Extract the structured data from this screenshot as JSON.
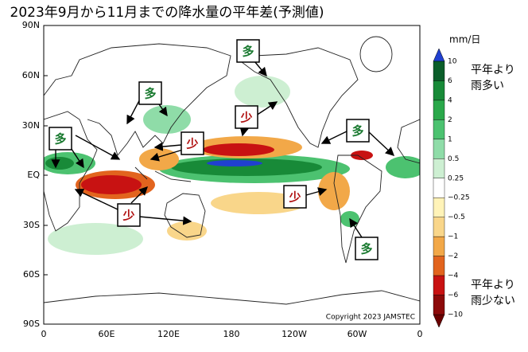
{
  "header": {
    "title": "2023年9月から11月までの降水量の平年差(予測値)"
  },
  "map": {
    "lat_labels": [
      "90N",
      "60N",
      "30N",
      "EQ",
      "30S",
      "60S",
      "90S"
    ],
    "lon_labels": [
      "0",
      "60E",
      "120E",
      "180",
      "120W",
      "60W",
      "0"
    ],
    "copyright": "Copyright 2023 JAMSTEC",
    "callouts": [
      {
        "label": "多",
        "kind": "wet"
      },
      {
        "label": "多",
        "kind": "wet"
      },
      {
        "label": "多",
        "kind": "wet"
      },
      {
        "label": "多",
        "kind": "wet"
      },
      {
        "label": "多",
        "kind": "wet"
      },
      {
        "label": "少",
        "kind": "dry"
      },
      {
        "label": "少",
        "kind": "dry"
      },
      {
        "label": "少",
        "kind": "dry"
      },
      {
        "label": "少",
        "kind": "dry"
      }
    ]
  },
  "legend": {
    "unit": "mm/日",
    "ticks": [
      "10",
      "6",
      "4",
      "2",
      "1",
      "0.5",
      "0.25",
      "−0.25",
      "−0.5",
      "−1",
      "−2",
      "−4",
      "−6",
      "−10"
    ],
    "colors": [
      "#0b5e2a",
      "#188a38",
      "#2aa84a",
      "#4cc270",
      "#8fdca8",
      "#cdefd2",
      "#ffffff",
      "#fff3b8",
      "#f9d68a",
      "#f2a848",
      "#e2641e",
      "#c81212",
      "#8c0a0a"
    ],
    "top_color": "#2040d0",
    "bottom_color": "#6a0000",
    "wet_note": [
      "平年より",
      "雨多い"
    ],
    "dry_note": [
      "平年より",
      "雨少ない"
    ]
  }
}
